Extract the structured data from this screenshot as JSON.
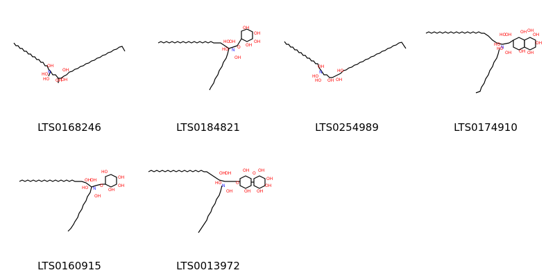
{
  "molecules": [
    {
      "id": "LTS0168246"
    },
    {
      "id": "LTS0184821"
    },
    {
      "id": "LTS0254989"
    },
    {
      "id": "LTS0174910"
    },
    {
      "id": "LTS0160915"
    },
    {
      "id": "LTS0013972"
    }
  ],
  "colors": {
    "bond": "#000000",
    "oxygen": "#ff0000",
    "nitrogen": "#2222ff"
  }
}
